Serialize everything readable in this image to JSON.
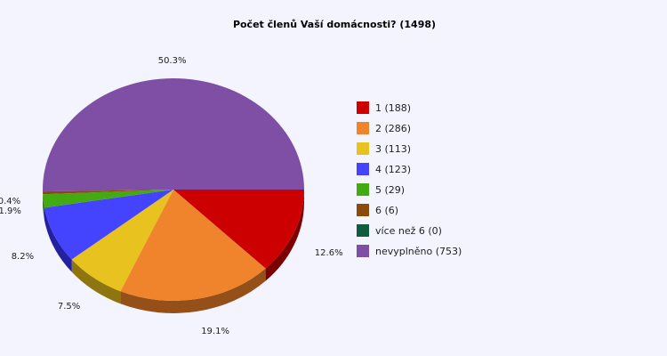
{
  "chart_data": {
    "type": "pie",
    "title": "Počet členů Vaší domácnosti? (1498)",
    "slices": [
      {
        "label": "1",
        "value": 188,
        "percent": "12.6%",
        "legend": "1 (188)",
        "color": "#cc0000",
        "side": "#7a0000"
      },
      {
        "label": "2",
        "value": 286,
        "percent": "19.1%",
        "legend": "2 (286)",
        "color": "#f0842c",
        "side": "#955019"
      },
      {
        "label": "3",
        "value": 113,
        "percent": "7.5%",
        "legend": "3 (113)",
        "color": "#e8c21e",
        "side": "#8e7510"
      },
      {
        "label": "4",
        "value": 123,
        "percent": "8.2%",
        "legend": "4 (123)",
        "color": "#4444ff",
        "side": "#2222a0"
      },
      {
        "label": "5",
        "value": 29,
        "percent": "1.9%",
        "legend": "5 (29)",
        "color": "#44aa11",
        "side": "#2a6a0a"
      },
      {
        "label": "6",
        "value": 6,
        "percent": "0.4%",
        "legend": "6 (6)",
        "color": "#8b4a0a",
        "side": "#552d05"
      },
      {
        "label": "více než 6",
        "value": 0,
        "percent": "",
        "legend": "více než 6 (0)",
        "color": "#115c3c",
        "side": "#0a3824"
      },
      {
        "label": "nevyplněno",
        "value": 753,
        "percent": "50.3%",
        "legend": "nevyplněno (753)",
        "color": "#7f4fa5",
        "side": "#4e2f66"
      }
    ],
    "legend_position": "right"
  }
}
